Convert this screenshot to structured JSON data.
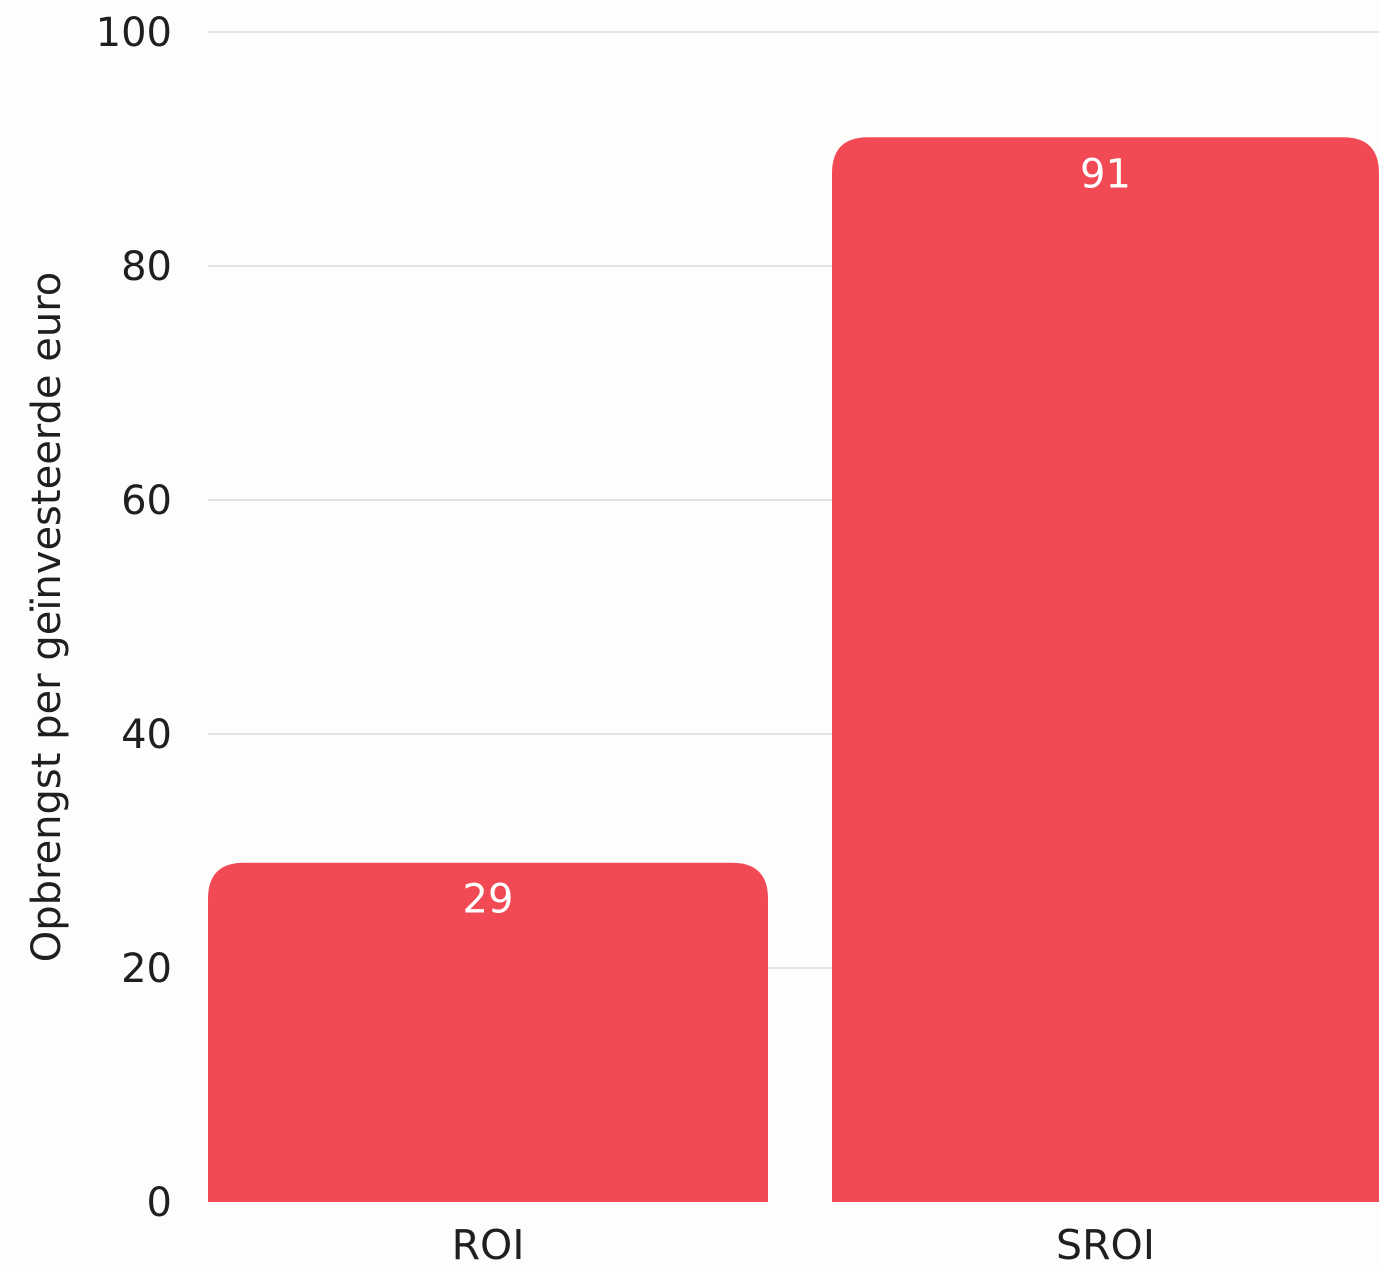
{
  "chart_data": {
    "type": "bar",
    "categories": [
      "ROI",
      "SROI"
    ],
    "values": [
      29,
      91
    ],
    "ylabel": "Opbrengst per geïnvesteerde euro",
    "xlabel": "",
    "ylim": [
      0,
      100
    ],
    "yticks": [
      0,
      20,
      40,
      60,
      80,
      100
    ],
    "grid": true,
    "bar_color": "#f24a55",
    "data_label_color": "#ffffff"
  }
}
